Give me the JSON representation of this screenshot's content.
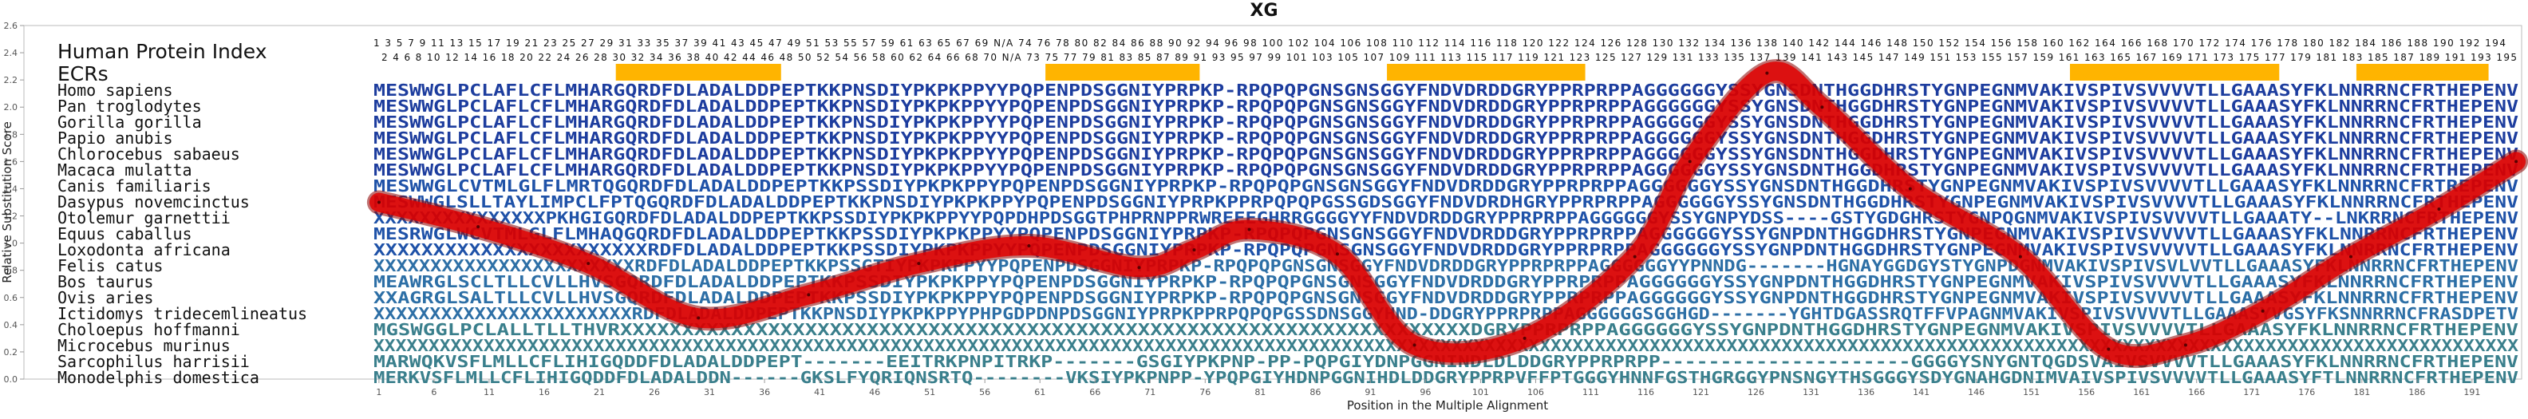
{
  "chart_data": {
    "type": "line",
    "title": "XG",
    "xlabel": "Position in the Multiple Alignment",
    "ylabel": "Relative Substitution Score",
    "xlim": [
      0,
      195
    ],
    "ylim": [
      0.0,
      2.6
    ],
    "x_ticks": [
      1,
      6,
      11,
      16,
      21,
      26,
      31,
      36,
      41,
      46,
      51,
      56,
      61,
      66,
      71,
      76,
      81,
      86,
      91,
      96,
      101,
      106,
      111,
      116,
      121,
      126,
      131,
      136,
      141,
      146,
      151,
      156,
      161,
      166,
      171,
      176,
      181,
      186,
      191
    ],
    "y_ticks": [
      "0.0",
      "0.2",
      "0.4",
      "0.6",
      "0.8",
      "1.0",
      "1.2",
      "1.4",
      "1.6",
      "1.8",
      "2.0",
      "2.2",
      "2.4",
      "2.6"
    ],
    "grid": false,
    "legend": "none",
    "series": [
      {
        "color": "#e00000",
        "x": [
          1,
          10,
          20,
          30,
          40,
          50,
          60,
          70,
          75,
          80,
          88,
          95,
          105,
          115,
          120,
          127,
          132,
          140,
          150,
          158,
          165,
          172,
          180,
          188,
          195
        ],
        "y": [
          1.3,
          1.12,
          0.85,
          0.45,
          0.62,
          0.85,
          0.98,
          0.82,
          0.95,
          1.1,
          0.92,
          0.25,
          0.3,
          0.9,
          1.6,
          2.25,
          2.0,
          1.4,
          0.9,
          0.22,
          0.25,
          0.5,
          0.9,
          1.25,
          1.6
        ]
      }
    ],
    "human_protein_index": {
      "label": "Human Protein Index",
      "odd_row": "1 3 5 7 9 11 13 15 17 19 21 23 25 27 29 31 33 35 37 39 41 43 45 47 49 51 53 55 57 59 61 63 65 67 69 N/A 74 76 78 80 82 84 86 88 90 92 94 96 98 100 102 104 106 108 110 112 114 116 118 120 122 124 126 128 130 132 134 136 138 140 142 144 146 148 150 152 154 156 158 160 162 164 166 168 170 172 174 176 178 180 182 184 186 188 190 192 194",
      "even_row": "2 4 6 8 10 12 14 16 18 20 22 24 26 28 30 32 34 36 38 40 42 44 46 48 50 52 54 56 58 60 62 64 66 68 70 N/A 73 75 77 79 81 83 85 87 89 91 93 95 97 99 101 103 105 107 109 111 113 115 117 119 121 123 125 127 129 131 133 135 137 139 141 143 145 147 149 151 153 155 157 159 161 163 165 167 169 171 173 175 177 179 181 183 185 187 189 191 193 195"
    },
    "ecrs": {
      "label": "ECRs",
      "color": "#ffb400",
      "regions": [
        [
          23,
          37
        ],
        [
          62,
          75
        ],
        [
          93,
          110
        ],
        [
          155,
          173
        ],
        [
          181,
          192
        ]
      ]
    },
    "alignment": [
      {
        "species": "Homo sapiens",
        "sequence": "MESWWGLPCLAFLCFLMHARGQRDFDLADALDDPEPTKKPNSDIYPKPKPPYYPQPENPDSGGNIYPRPKP-RPQPQPGNSGNSGGYFNDVDRDDGRYPPRPRPPAGGGGGGYSSYGNSDNTHGGDHRSTYGNPEGNMVAKIVSPIVSVVVVTLLGAAASYFKLNNRRNCFRTHEPENV"
      },
      {
        "species": "Pan troglodytes",
        "sequence": "MESWWGLPCLAFLCFLMHARGQRDFDLADALDDPEPTKKPNSDIYPKPKPPYYPQPENPDSGGNIYPRPKP-RPQPQPGNSGNSGGYFNDVDRDDGRYPPRPRPPAGGGGGGYSSYGNSDNTHGGDHRSTYGNPEGNMVAKIVSPIVSVVVVTLLGAAASYFKLNNRRNCFRTHEPENV"
      },
      {
        "species": "Gorilla gorilla",
        "sequence": "MESWWGLPCLAFLCFLMHARGQRDFDLADALDDPEPTKKPNSDIYPKPKPPYYPQPENPDSGGNIYPRPKP-RPQPQPGNSGNSGGYFNDVDRDDGRYPPRPRPPAGGGGGGYSSYGNSDNTHGGDHRSTYGNPEGNMVAKIVSPIVSVVVVTLLGAAASYFKLNNRRNCFRTHEPENV"
      },
      {
        "species": "Papio anubis",
        "sequence": "MESWWGLPCLAFLCFLMHARGQRDFDLADALDDPEPTKKPNSDIYPKPKPPYYPQPENPDSGGNIYPRPKP-RPQPQPGNSGNSGGYFNDVDRDDGRYPPRPRPPAGGGGGGYSSYGNSDNTHGGDHRSTYGNPEGNMVAKIVSPIVSVVVVTLLGAAASYFKLNNRRNCFRTHEPENV"
      },
      {
        "species": "Chlorocebus sabaeus",
        "sequence": "MESWWGLPCLAFLCFLMHARGQRDFDLADALDDPEPTKKPNSDIYPKPKPPYYPQPENPDSGGNIYPRPKP-RPQPQPGNSGNSGGYFNDVDRDDGRYPPRPRPPAGGGGGGYSSYGNSDNTHGGDHRSTYGNPEGNMVAKIVSPIVSVVVVTLLGAAASYFKLNNRRNCFRTHEPENV"
      },
      {
        "species": "Macaca mulatta",
        "sequence": "MESWWGLPCLAFLCFLMHARGQRDFDLADALDDPEPTKKPNSDIYPKPKPPYYPQPENPDSGGNIYPRPKP-RPQPQPGNSGNSGGYFNDVDRDDGRYPPRPRPPAGGGGGGYSSYGNSDNTHGGDHRSTYGNPEGNMVAKIVSPIVSVVVVTLLGAAASYFKLNNRRNCFRTHEPENV"
      },
      {
        "species": "Canis familiaris",
        "sequence": "MESWWGLCVTMLGLFLMRTQGQRDFDLADALDDPEPTKKPSSDIYPKPKPPYPQPENPDSGGNIYPRPKP-RPQPQPGNSGNSGGYFNDVDRDDGRYPPRPRPPAGGGGGGYSSYGNSDNTHGGDHRSTYGNPEGNMVAKIVSPIVSVVVVTLLGAAASYFKLNNRRNCFRTREPENV"
      },
      {
        "species": "Dasypus novemcinctus",
        "sequence": "MESWWGLSLLTAYLIMPCLFPTQGQRDFDLADALDDPEPTKKPNSDIYPKPKPPYPQPENPDSGGNIYPRPKPPRPQPQPGSSGDSGGYFNDVDRDHGRYPPRPRPPAGGGGGGYSSYGNSDNTHGGDHRSTYGNPEGNMVAKIVSPIVSVVVVTLLGAAASYFKLNNRRNCFRTHEPENV"
      },
      {
        "species": "Otolemur garnettii",
        "sequence": "XXXXXXXXXXXXXXXPKHGIGQRDFDLADALDDPEPTKKPSSDIYPKPKPPYYPQPDHPDSGGTPHPRNPPRWREEEGHRRGGGGYYFNDVDRDDGRYPPRPRPPAGGGGGGYSSYGNPYDSS----GSTYGDGHRSTYGNPQGNMVAKIVSPIVSVVVVTLLGAAATY--LNKRRNCFRTHEPENV"
      },
      {
        "species": "Equus caballus",
        "sequence": "MESRWGLWCVTMLGLFLMHAQGQRDFDLADALDDPEPTKKPSSDIYPKPKPPYYPQPENPDSGGNIYPRPKP-RPQPQPGNSGNSGGYFNDVDRDDGRYPPRPRPPAGGGGGGYSSYGNPDNTHGGDHRSTYGNPEGNMVAKIVSPIVSVVVVTLLGAAASYFKLNNRRNCFRTHEPENV"
      },
      {
        "species": "Loxodonta africana",
        "sequence": "XXXXXXXXXXXXXXXXXXXXXXXRDFDLADALDDPEPTKKPSSDIYPKPKPPYYPQPENPDSGGNIYPRPKP-RPQPQPGNSGNSGGYFNDVDRDDGRYPPRPRPPAGGGGGGYSSYGNPDNTHGGDHRSTYGNPEGNMVAKIVSPIVSVVVVTLLGAAASYFKLNNRRNCFRTHEPENV"
      },
      {
        "species": "Felis catus",
        "sequence": "XXXXXXXXXXXXXXXXXXXXXXXRDFDLADALDDPEPTKKPSSGTIYPKPKPPYYPQPENPDSGGNIYPRPKP-RPQPQPGNSGNSGGYFNDVDRDDGRYPPRPRPPAGGGGGGYYPNNDG-------HGNAYGGDGYSTYGNPDGNMVAKIVSPIVSVLVVTLLGAAASYFKLNNRRNCFRTHEPENV"
      },
      {
        "species": "Bos taurus",
        "sequence": "MEAWRGLSCLTLLCVLLHVSGQRDFDLADALDDPEPTKKPSSDIYPKPKPPYPQPENPDSGGNIYPRPKP-RPQPQPGNSGNSGGYFNDVDRDDGRYPPRPRPPAGGGGGGYSSYGNPDNTHGGDHRSTYGNPEGNMVAKIVSPIVSVVVVTLLGAAASYFKLNNRRNCFRTHEPENV"
      },
      {
        "species": "Ovis aries",
        "sequence": "XXAGRGLSALTLLCVLLHVSGQRDFDLADALDDPEPTKKPSSDIYPKPKPPYPQPENPDSGGNIYPRPKP-RPQPQPGNSGNSGGYFNDVDRDDGRYPPRPRPPAGGGGGGYSSYGNPDNTHGGDHRSTYGNPEGNMVAKIVSPIVSVVVVTLLGAAASYFKLNNRRNCFRTHEPENV"
      },
      {
        "species": "Ictidomys tridecemlineatus",
        "sequence": "XXXXXXXXXXXXXXXXXXXXXXXRDFDLADALDDPEPTKKPNSDIYPKPKPPYPHPGDPDNPDSGGNIYPRPKPPRPQPQPGSSDNSGGYHND-DDGRYPPRPRPPAGGGGGGSGGHGD-------YGHTDGASSRQTFFVPAGNMVAKIVSPIVSVVVVTLLGAAASYVGSYFKSNNRRNCFRASDPETV"
      },
      {
        "species": "Choloepus hoffmanni",
        "sequence": "MGSWGGLPCLALLTLLTHVRXXXXXXXXXXXXXXXXXXXXXXXXXXXXXXXXXXXXXXXXXXXXXXXXXXXXXXXXXXXXXXXXXXXXXDGRYPPRPRPPAGGGGGGYSSYGNPDNTHGGDHRSTYGNPEGNMVAKIVSPIVSVVVVTLLGAAASYFKLNNRRNCFRTHEPENV"
      },
      {
        "species": "Microcebus murinus",
        "sequence": "XXXXXXXXXXXXXXXXXXXXXXXXXXXXXXXXXXXXXXXXXXXXXXXXXXXXXXXXXXXXXXXXXXXXXXXXXXXXXXXXXXXXXXXXXXXXXXXXXXXXXXXXXXXXXXXXXXXXXXXXXXXXXXXXXXXXXXXXXXXXXXXXXXXXXXXXXXXXXXXXXXXXXXXXXXXXXXXXXXXXXXXXXXXXXXXXXXX"
      },
      {
        "species": "Sarcophilus harrisii",
        "sequence": "MARWQKVSFLMLLCFLIHIGQDDFDLADALDDPEPT-------EEITRKPNPITRKP-------GSGIYPKPNP-PP-PQPGIYDNPGGNINDLDLDDGRYPPRPRPP---------------------GGGGYSNYGNTQGDSVAIVSVVVVTLLGAAASYFKLNNRRNCFRTHEPENV"
      },
      {
        "species": "Monodelphis domestica",
        "sequence": "MERKVSFLMLLCFLIHIGQDDFDLADALDDN------GKSLFYQRIQNSRTQ--------VKSIYPKPNPP-YPQPGIYHDNPGGNIHDLDDGRYPPRPVFFPTGGGYHNNFGSTHGRGGYPNSNGYTHSGGGYSDYGNAHGDNIMVAIVSPIVSVVVVTLLGAAASYFTLNNRRNCFRTHEPENV"
      }
    ]
  }
}
